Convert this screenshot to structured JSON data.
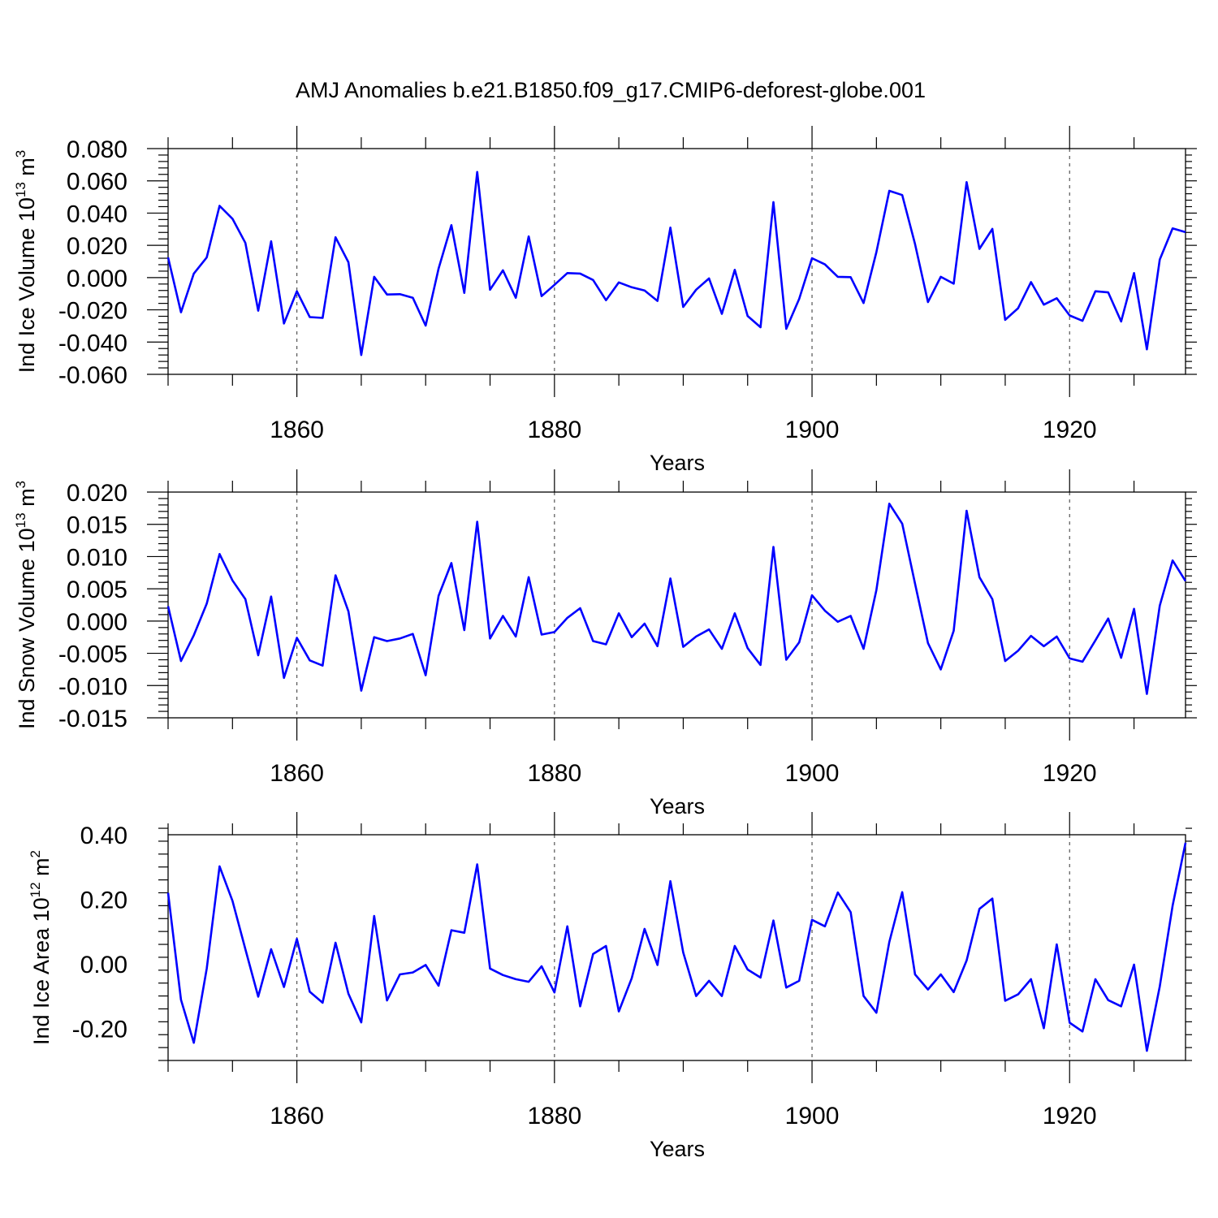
{
  "chart_data": {
    "title": "AMJ Anomalies b.e21.B1850.f09_g17.CMIP6-deforest-globe.001",
    "panels": [
      {
        "type": "line",
        "ylabel": {
          "main": "Ind Ice Volume 10",
          "sup": "13",
          "unit": " m",
          "unit_sup": "3"
        },
        "xlabel": "Years",
        "xlim": [
          1850,
          1929
        ],
        "ylim": [
          -0.06,
          0.08
        ],
        "yticks": [
          -0.06,
          -0.04,
          -0.02,
          0.0,
          0.02,
          0.04,
          0.06,
          0.08
        ],
        "ytick_labels": [
          "-0.060",
          "-0.040",
          "-0.020",
          "0.000",
          "0.020",
          "0.040",
          "0.060",
          "0.080"
        ],
        "yminor_step": 0.004,
        "xticks": [
          1860,
          1880,
          1900,
          1920
        ],
        "xtick_labels": [
          "1860",
          "1880",
          "1900",
          "1920"
        ],
        "x_start": 1850,
        "values": [
          0.0125,
          -0.0215,
          0.0025,
          0.0125,
          0.0445,
          0.0365,
          0.0215,
          -0.0205,
          0.0225,
          -0.0285,
          -0.0085,
          -0.0245,
          -0.025,
          0.025,
          0.0095,
          -0.048,
          0.0005,
          -0.0105,
          -0.0103,
          -0.0125,
          -0.0298,
          0.0055,
          0.0325,
          -0.0095,
          0.0655,
          -0.0075,
          0.0045,
          -0.0125,
          0.0255,
          -0.0115,
          -0.0045,
          0.0028,
          0.0025,
          -0.0015,
          -0.014,
          -0.003,
          -0.006,
          -0.008,
          -0.0145,
          0.031,
          -0.0182,
          -0.0075,
          -0.0005,
          -0.0225,
          0.0048,
          -0.0238,
          -0.0308,
          0.0468,
          -0.0318,
          -0.0132,
          0.012,
          0.0082,
          0.0005,
          0.0003,
          -0.0158,
          0.0158,
          0.0538,
          0.0512,
          0.0208,
          -0.0152,
          0.0005,
          -0.0038,
          0.0592,
          0.0178,
          0.0302,
          -0.0262,
          -0.019,
          -0.0028,
          -0.0168,
          -0.0128,
          -0.0235,
          -0.0268,
          -0.0085,
          -0.0092,
          -0.0272,
          0.0028,
          -0.0445,
          0.0112,
          0.0305,
          0.0282
        ]
      },
      {
        "type": "line",
        "ylabel": {
          "main": "Ind Snow Volume 10",
          "sup": "13",
          "unit": " m",
          "unit_sup": "3"
        },
        "xlabel": "Years",
        "xlim": [
          1850,
          1929
        ],
        "ylim": [
          -0.015,
          0.02
        ],
        "yticks": [
          -0.015,
          -0.01,
          -0.005,
          0.0,
          0.005,
          0.01,
          0.015,
          0.02
        ],
        "ytick_labels": [
          "-0.015",
          "-0.010",
          "-0.005",
          "0.000",
          "0.005",
          "0.010",
          "0.015",
          "0.020"
        ],
        "yminor_step": 0.001,
        "xticks": [
          1860,
          1880,
          1900,
          1920
        ],
        "xtick_labels": [
          "1860",
          "1880",
          "1900",
          "1920"
        ],
        "x_start": 1850,
        "values": [
          0.0023,
          -0.0062,
          -0.0022,
          0.0027,
          0.0104,
          0.0063,
          0.0034,
          -0.0053,
          0.0038,
          -0.0088,
          -0.0026,
          -0.0061,
          -0.0069,
          0.0071,
          0.0015,
          -0.0108,
          -0.0025,
          -0.0031,
          -0.0027,
          -0.002,
          -0.0084,
          0.0039,
          0.009,
          -0.0014,
          0.0154,
          -0.0027,
          0.0008,
          -0.0024,
          0.0068,
          -0.0021,
          -0.0017,
          0.0005,
          0.002,
          -0.0031,
          -0.0036,
          0.0012,
          -0.0025,
          -0.0004,
          -0.0039,
          0.0066,
          -0.004,
          -0.0024,
          -0.0013,
          -0.0043,
          0.0012,
          -0.0042,
          -0.0068,
          0.0115,
          -0.006,
          -0.0033,
          0.004,
          0.0016,
          -0.0001,
          0.0008,
          -0.0043,
          0.0048,
          0.0182,
          0.0151,
          0.0058,
          -0.0034,
          -0.0075,
          -0.0015,
          0.0171,
          0.0068,
          0.0034,
          -0.0062,
          -0.0046,
          -0.0023,
          -0.0039,
          -0.0024,
          -0.0058,
          -0.0063,
          -0.003,
          0.0004,
          -0.0057,
          0.0019,
          -0.0113,
          0.0024,
          0.0094,
          0.0062
        ]
      },
      {
        "type": "line",
        "ylabel": {
          "main": "Ind Ice Area 10",
          "sup": "12",
          "unit": " m",
          "unit_sup": "2"
        },
        "xlabel": "Years",
        "xlim": [
          1850,
          1929
        ],
        "ylim": [
          -0.3,
          0.4
        ],
        "yticks": [
          -0.2,
          0.0,
          0.2,
          0.4
        ],
        "ytick_labels": [
          "-0.20",
          "0.00",
          "0.20",
          "0.40"
        ],
        "yminor_step": 0.04,
        "xticks": [
          1860,
          1880,
          1900,
          1920
        ],
        "xtick_labels": [
          "1860",
          "1880",
          "1900",
          "1920"
        ],
        "x_start": 1850,
        "values": [
          0.22,
          -0.112,
          -0.245,
          -0.015,
          0.302,
          0.195,
          0.045,
          -0.102,
          0.045,
          -0.072,
          0.077,
          -0.087,
          -0.121,
          0.065,
          -0.093,
          -0.182,
          0.148,
          -0.114,
          -0.033,
          -0.027,
          -0.004,
          -0.068,
          0.104,
          0.096,
          0.308,
          -0.015,
          -0.035,
          -0.048,
          -0.056,
          -0.008,
          -0.089,
          0.116,
          -0.132,
          0.03,
          0.055,
          -0.148,
          -0.045,
          0.108,
          -0.004,
          0.256,
          0.035,
          -0.1,
          -0.053,
          -0.1,
          0.055,
          -0.018,
          -0.043,
          0.134,
          -0.074,
          -0.053,
          0.136,
          0.116,
          0.221,
          0.16,
          -0.1,
          -0.152,
          0.067,
          0.222,
          -0.033,
          -0.08,
          -0.033,
          -0.088,
          0.01,
          0.17,
          0.202,
          -0.115,
          -0.095,
          -0.048,
          -0.2,
          0.06,
          -0.183,
          -0.21,
          -0.048,
          -0.113,
          -0.132,
          -0.003,
          -0.27,
          -0.07,
          0.18,
          0.375
        ]
      }
    ]
  },
  "colors": {
    "series": "#0000ff",
    "axis": "#000000",
    "grid": "#555555"
  }
}
